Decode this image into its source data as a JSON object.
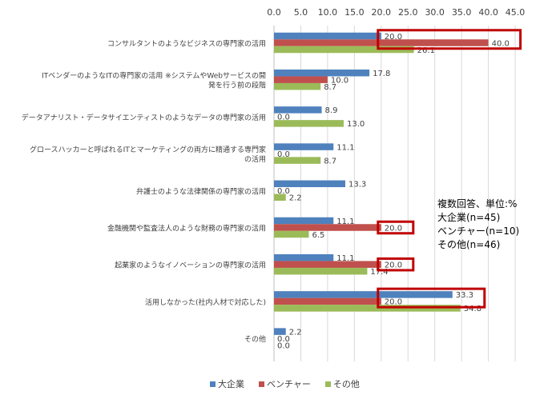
{
  "chart_data": {
    "type": "bar",
    "orientation": "horizontal",
    "xlim": [
      0,
      45
    ],
    "ticks": [
      "0.0",
      "5.0",
      "10.0",
      "15.0",
      "20.0",
      "25.0",
      "30.0",
      "35.0",
      "40.0",
      "45.0"
    ],
    "grid": true,
    "categories": [
      [
        "コンサルタントのようなビジネスの専門家の活用"
      ],
      [
        "ITベンダーのようなITの専門家の活用 ※システムやWebサービスの開",
        "発を行う前の段階"
      ],
      [
        "データアナリスト・データサイエンティストのようなデータの専門家の活用"
      ],
      [
        "グロースハッカーと呼ばれるITとマーケティングの両方に精通する専門家",
        "の活用"
      ],
      [
        "弁護士のような法律関係の専門家の活用"
      ],
      [
        "金融機関や監査法人のような財務の専門家の活用"
      ],
      [
        "起業家のようなイノベーションの専門家の活用"
      ],
      [
        "活用しなかった(社内人材で対応した)"
      ],
      [
        "その他"
      ]
    ],
    "series": [
      {
        "name": "大企業",
        "color": "#4f81bd",
        "values": [
          20.0,
          17.8,
          8.9,
          11.1,
          13.3,
          11.1,
          11.1,
          33.3,
          2.2
        ],
        "labels": [
          "20.0",
          "17.8",
          "8.9",
          "11.1",
          "13.3",
          "11.1",
          "11.1",
          "33.3",
          "2.2"
        ]
      },
      {
        "name": "ベンチャー",
        "color": "#c0504d",
        "values": [
          40.0,
          10.0,
          0.0,
          0.0,
          0.0,
          20.0,
          20.0,
          20.0,
          0.0
        ],
        "labels": [
          "40.0",
          "10.0",
          "0.0",
          "0.0",
          "0.0",
          "20.0",
          "20.0",
          "20.0",
          "0.0"
        ]
      },
      {
        "name": "その他",
        "color": "#9bbb59",
        "values": [
          26.1,
          8.7,
          13.0,
          8.7,
          2.2,
          6.5,
          17.4,
          34.8,
          0.0
        ],
        "labels": [
          "26.1",
          "8.7",
          "13.0",
          "8.7",
          "2.2",
          "6.5",
          "17.4",
          "34.8",
          "0.0"
        ]
      }
    ],
    "highlights": [
      {
        "category": 0,
        "series": [
          0,
          1
        ]
      },
      {
        "category": 5,
        "series": [
          1
        ]
      },
      {
        "category": 6,
        "series": [
          1
        ]
      },
      {
        "category": 7,
        "series": [
          0,
          1
        ]
      }
    ],
    "highlight_color": "#c00000",
    "legend_position": "bottom",
    "annotation": {
      "line1": "複数回答、単位:%",
      "line2": "大企業(n=45)",
      "line3": "ベンチャー(n=10)",
      "line4": "その他(n=46)"
    }
  }
}
